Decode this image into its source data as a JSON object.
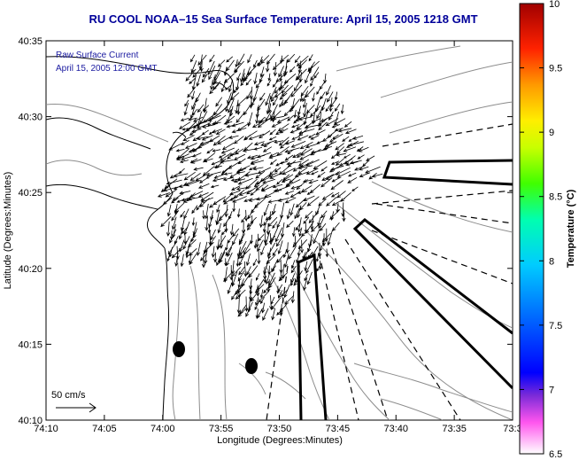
{
  "title": "RU COOL  NOAA–15  Sea Surface Temperature:  April 15, 2005 1218 GMT",
  "annotation": {
    "line1": "Raw Surface Current",
    "line2": "April 15, 2005 12:00 GMT"
  },
  "axes": {
    "xlabel": "Longitude (Degrees:Minutes)",
    "ylabel": "Latitude (Degrees:Minutes)",
    "x_ticks": [
      "74:10",
      "74:05",
      "74:00",
      "73:55",
      "73:50",
      "73:45",
      "73:40",
      "73:35",
      "73:3"
    ],
    "y_ticks": [
      "40:35",
      "40:30",
      "40:25",
      "40:20",
      "40:15",
      "40:10"
    ]
  },
  "scale_label": "50 cm/s",
  "colorbar": {
    "label": "Temperature (°C)",
    "ticks": [
      "10",
      "9.5",
      "9",
      "8.5",
      "8",
      "7.5",
      "7",
      "6.5"
    ],
    "min": 6.5,
    "max": 10
  },
  "colors": {
    "title": "#00009a",
    "annotation": "#1a1aa0",
    "coast": "#000000",
    "bathymetry": "#8c8c8c"
  }
}
